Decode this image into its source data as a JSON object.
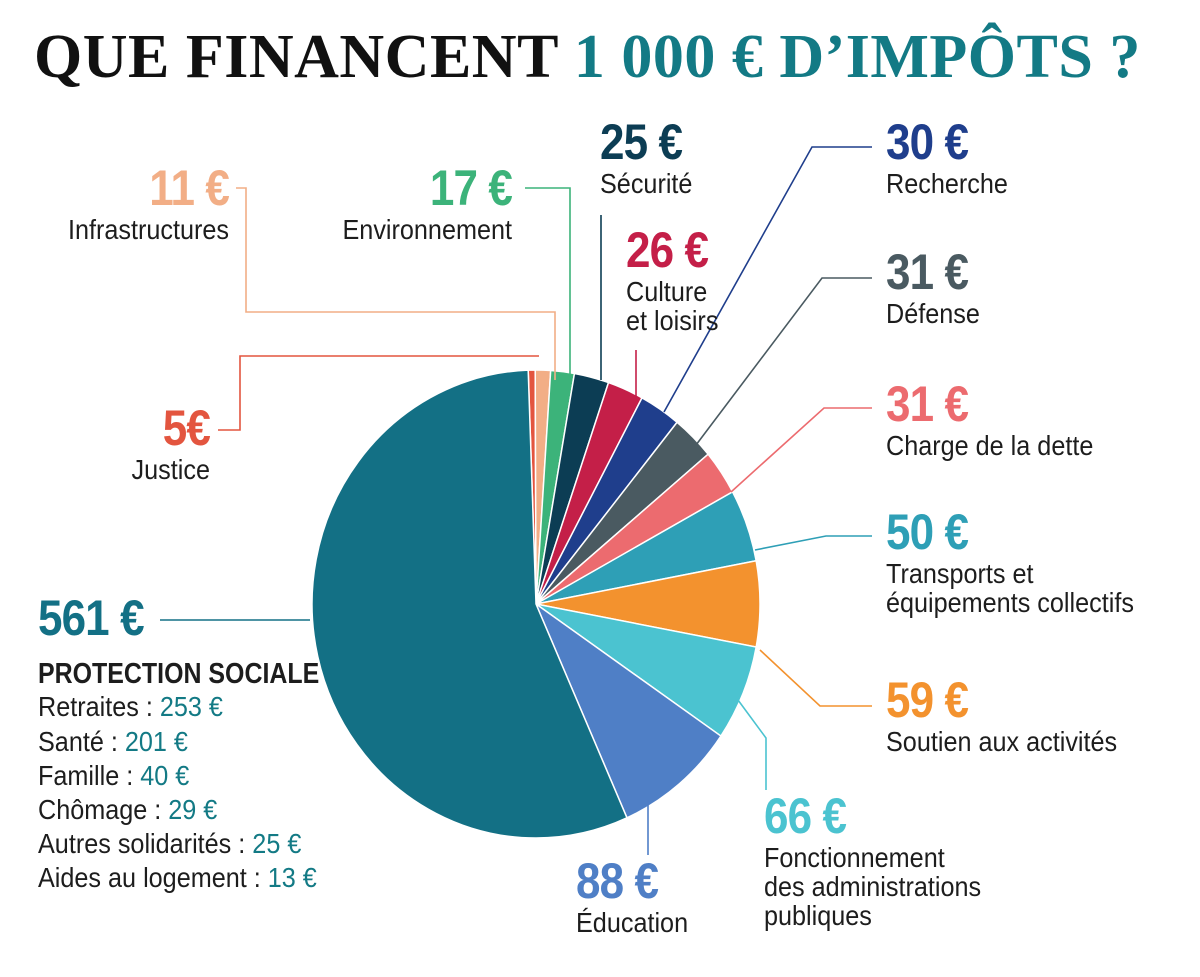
{
  "title": {
    "part1": "QUE FINANCENT",
    "part2": "1 000 € D’IMPÔTS ?"
  },
  "chart_data": {
    "type": "pie",
    "total": 1000,
    "unit": "€",
    "slices": [
      {
        "key": "protection",
        "value": 561,
        "label": "561 €",
        "category": "PROTECTION SOCIALE",
        "color": "#137085"
      },
      {
        "key": "justice",
        "value": 5,
        "label": "5€",
        "category": "Justice",
        "color": "#e3553f"
      },
      {
        "key": "infra",
        "value": 11,
        "label": "11 €",
        "category": "Infrastructures",
        "color": "#f2ae86"
      },
      {
        "key": "env",
        "value": 17,
        "label": "17 €",
        "category": "Environnement",
        "color": "#3cb37a"
      },
      {
        "key": "securite",
        "value": 25,
        "label": "25 €",
        "category": "Sécurité",
        "color": "#0c3d54"
      },
      {
        "key": "culture",
        "value": 26,
        "label": "26 €",
        "category": "Culture\net loisirs",
        "color": "#c41f48"
      },
      {
        "key": "recherche",
        "value": 30,
        "label": "30 €",
        "category": "Recherche",
        "color": "#1f3e8c"
      },
      {
        "key": "defense",
        "value": 31,
        "label": "31 €",
        "category": "Défense",
        "color": "#4a5a61"
      },
      {
        "key": "dette",
        "value": 31,
        "label": "31 €",
        "category": "Charge de la dette",
        "color": "#ec6b6f"
      },
      {
        "key": "transports",
        "value": 50,
        "label": "50 €",
        "category": "Transports et\néquipements collectifs",
        "color": "#2e9fb6"
      },
      {
        "key": "soutien",
        "value": 59,
        "label": "59 €",
        "category": "Soutien aux activités",
        "color": "#f3922e"
      },
      {
        "key": "fonctionnement",
        "value": 66,
        "label": "66 €",
        "category": "Fonctionnement\ndes administrations\npubliques",
        "color": "#4bc3d0"
      },
      {
        "key": "education",
        "value": 88,
        "label": "88 €",
        "category": "Éducation",
        "color": "#4f7fc6"
      }
    ],
    "protection_sociale_detail": [
      {
        "name": "Retraites",
        "value": "253 €"
      },
      {
        "name": "Santé",
        "value": "201 €"
      },
      {
        "name": "Famille",
        "value": "40 €"
      },
      {
        "name": "Chômage",
        "value": "29 €"
      },
      {
        "name": "Autres solidarités",
        "value": "25 €"
      },
      {
        "name": "Aides au logement",
        "value": "13 €"
      }
    ]
  }
}
